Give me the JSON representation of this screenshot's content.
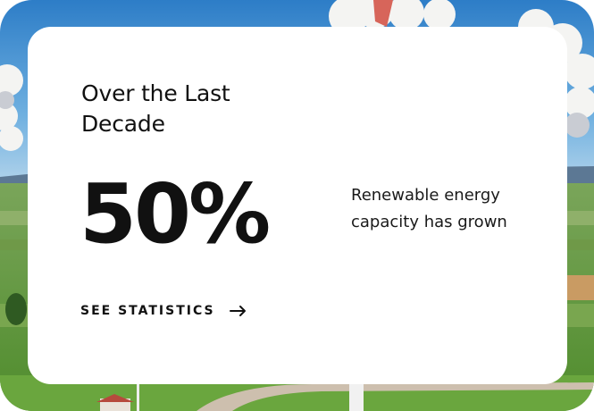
{
  "card": {
    "heading": "Over the Last Decade",
    "stat_value": "50%",
    "stat_description": "Renewable energy capacity has grown",
    "cta_label": "SEE STATISTICS",
    "cta_icon": "arrow-right-icon"
  },
  "background": {
    "scene": "wind-farm-landscape",
    "sky_color": "#3f8fd0",
    "field_color": "#5f9b3c"
  }
}
